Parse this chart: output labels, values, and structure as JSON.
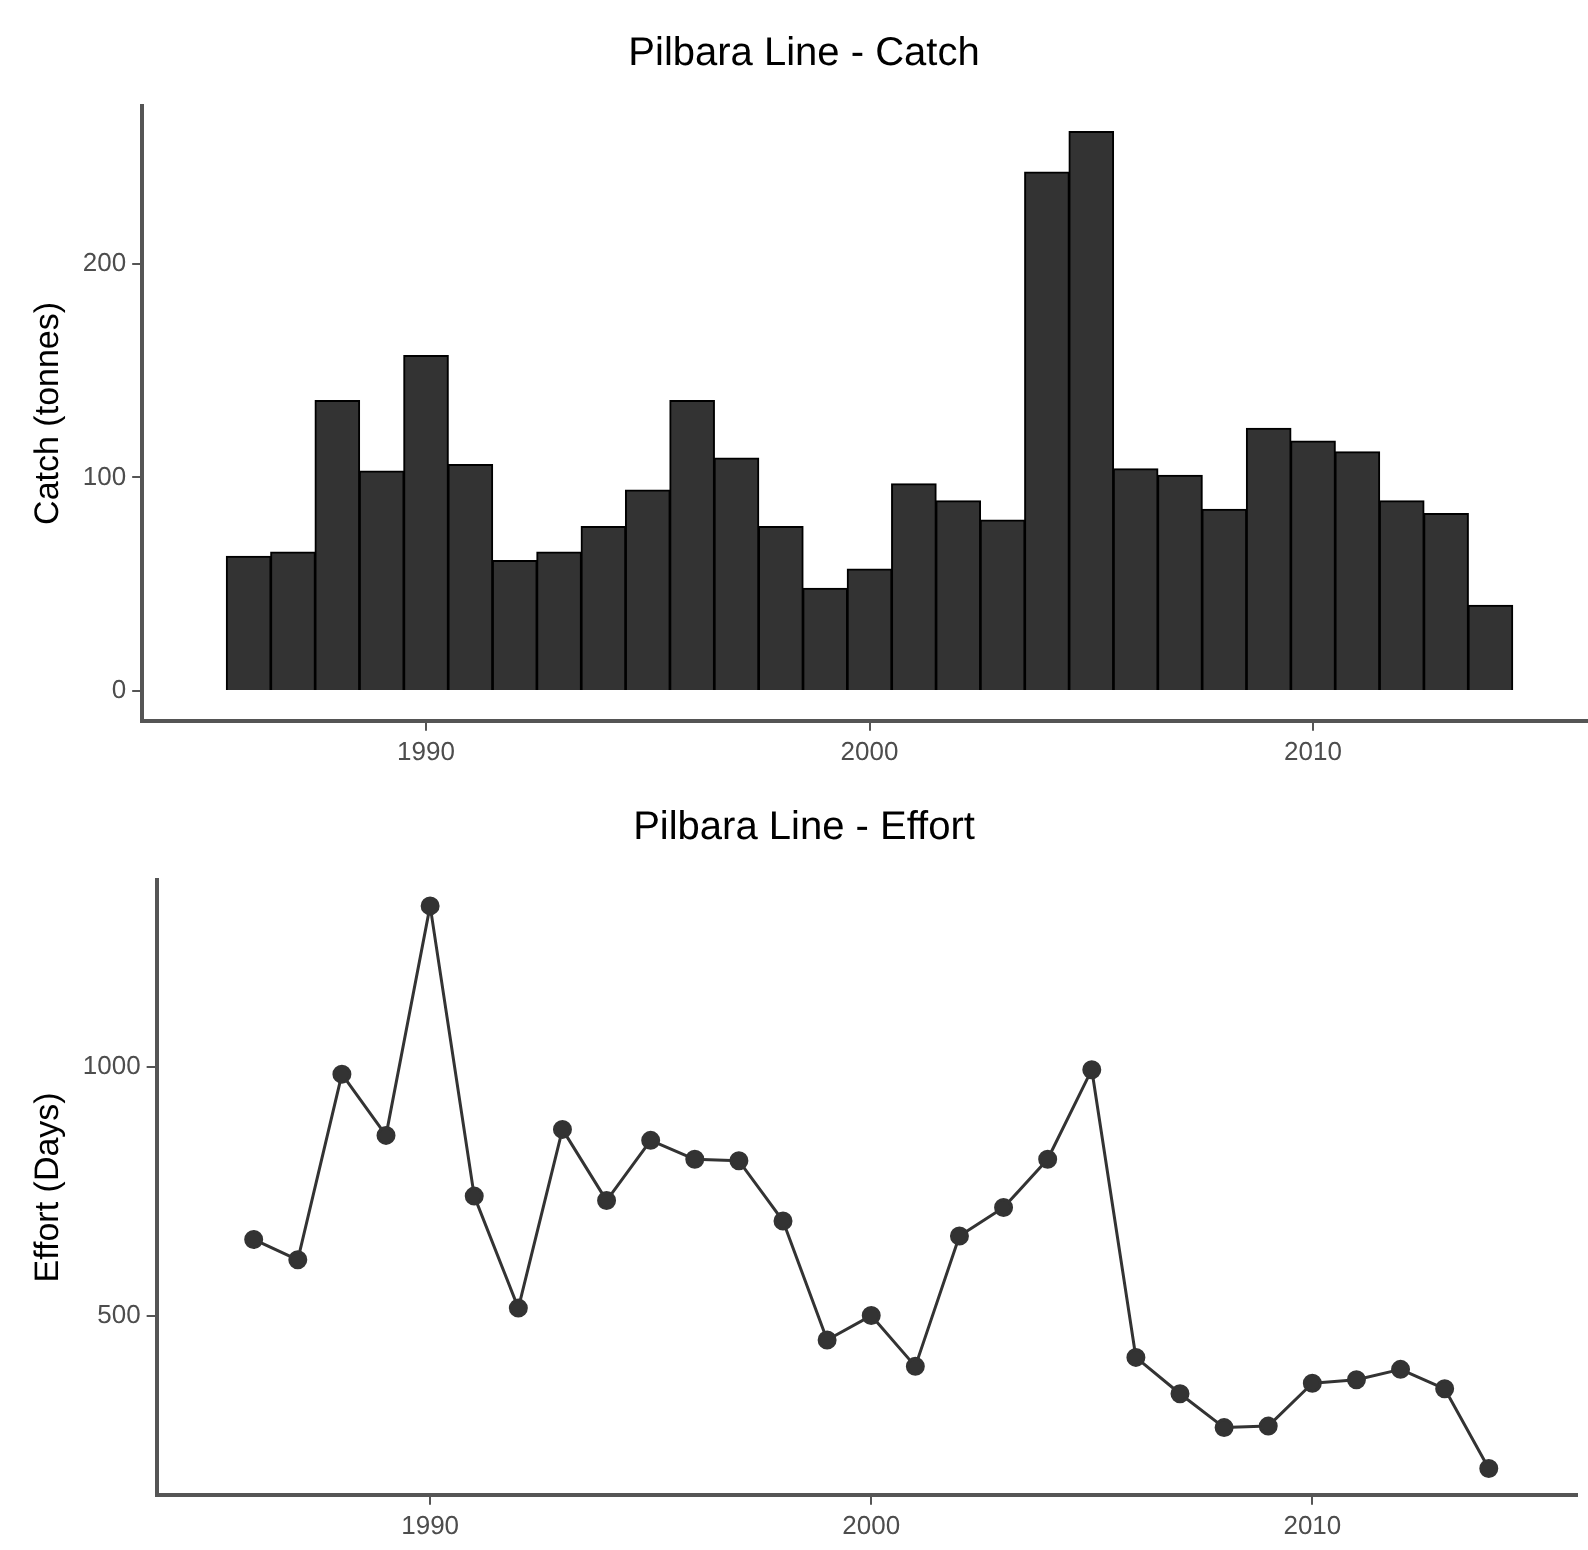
{
  "chart_data": [
    {
      "type": "bar",
      "title": "Pilbara Line - Catch",
      "ylabel": "Catch (tonnes)",
      "color": "#333333",
      "x": [
        1986,
        1987,
        1988,
        1989,
        1990,
        1991,
        1992,
        1993,
        1994,
        1995,
        1996,
        1997,
        1998,
        1999,
        2000,
        2001,
        2002,
        2003,
        2004,
        2005,
        2006,
        2007,
        2008,
        2009,
        2010,
        2011,
        2012,
        2013,
        2014
      ],
      "values": [
        63,
        65,
        136,
        103,
        157,
        106,
        61,
        65,
        77,
        94,
        136,
        109,
        77,
        48,
        57,
        97,
        89,
        80,
        243,
        262,
        104,
        101,
        85,
        123,
        117,
        112,
        89,
        83,
        40
      ],
      "xlim": [
        1983.6,
        2016.2
      ],
      "xticks": [
        1990,
        2000,
        2010
      ],
      "ylim": [
        -14,
        274
      ],
      "yticks": [
        0,
        100,
        200
      ]
    },
    {
      "type": "line",
      "title": "Pilbara Line - Effort",
      "ylabel": "Effort (Days)",
      "color": "#333333",
      "marker": "circle",
      "x": [
        1986,
        1987,
        1988,
        1989,
        1990,
        1991,
        1992,
        1993,
        1994,
        1995,
        1996,
        1997,
        1998,
        1999,
        2000,
        2001,
        2002,
        2003,
        2004,
        2005,
        2006,
        2007,
        2008,
        2009,
        2010,
        2011,
        2012,
        2013,
        2014
      ],
      "values": [
        653,
        612,
        985,
        862,
        1323,
        740,
        515,
        874,
        731,
        852,
        814,
        811,
        690,
        451,
        500,
        398,
        660,
        717,
        814,
        994,
        416,
        343,
        275,
        278,
        364,
        371,
        392,
        353,
        193
      ],
      "xlim": [
        1983.8,
        2016
      ],
      "xticks": [
        1990,
        2000,
        2010
      ],
      "ylim": [
        140,
        1375
      ],
      "yticks": [
        500,
        1000
      ]
    }
  ]
}
